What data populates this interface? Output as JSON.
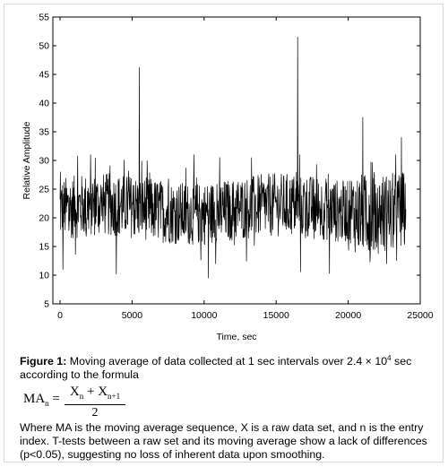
{
  "chart_data": {
    "type": "line",
    "title": "",
    "xlabel": "Time, sec",
    "ylabel": "Relative Amplitude",
    "xlim": [
      -500,
      25000
    ],
    "ylim": [
      5,
      55
    ],
    "xticks": [
      0,
      5000,
      10000,
      15000,
      20000,
      25000
    ],
    "yticks": [
      5,
      10,
      15,
      20,
      25,
      30,
      35,
      40,
      45,
      50,
      55
    ],
    "grid": false,
    "legend": "none",
    "series_color": "#000000",
    "x_range": [
      0,
      24000
    ],
    "baseline_mean_approx": 21.5,
    "peaks": [
      {
        "x": 5500,
        "y": 46.2
      },
      {
        "x": 16500,
        "y": 51.5
      },
      {
        "x": 21000,
        "y": 37.5
      },
      {
        "x": 23700,
        "y": 34
      }
    ],
    "troughs": [
      {
        "x": 200,
        "y": 11
      },
      {
        "x": 3900,
        "y": 10.2
      },
      {
        "x": 10300,
        "y": 9.5
      },
      {
        "x": 16700,
        "y": 10.6
      },
      {
        "x": 18700,
        "y": 10.3
      }
    ]
  },
  "caption": {
    "label": "Figure 1:",
    "text": " Moving average of data collected at 1 sec intervals over 2.4 × 10",
    "exp": "4",
    "text2": " sec according to the formula",
    "body": "Where MA is the moving average sequence, X is a raw data set, and n is the entry index. T-tests between a raw set and its moving average show a lack of differences (p<0.05), suggesting no loss of inherent data upon smoothing."
  },
  "formula": {
    "lhs": "MA",
    "lhs_sub": "n",
    "eq": " =",
    "x1": "X",
    "x1_sub": "n",
    "plus": " + ",
    "x2": "X",
    "x2_sub": "n+1",
    "den": "2"
  }
}
